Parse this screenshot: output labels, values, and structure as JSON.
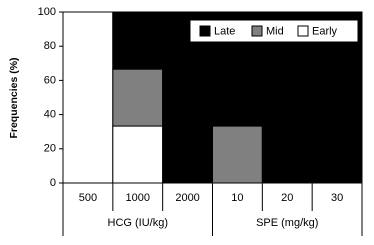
{
  "chart_data": {
    "type": "stacked_bar",
    "y_label": "Frequencies (%)",
    "categories": [
      "500",
      "1000",
      "2000",
      "10",
      "20",
      "30"
    ],
    "x_groups": [
      "HCG (IU/kg)",
      "SPE (mg/kg)"
    ],
    "series": [
      {
        "name": "Early",
        "color": "#ffffff",
        "values": [
          100,
          33.3,
          0,
          0,
          0,
          0
        ]
      },
      {
        "name": "Mid",
        "color": "#808080",
        "values": [
          0,
          33.3,
          0,
          33.3,
          0,
          0
        ]
      },
      {
        "name": "Late",
        "color": "#000000",
        "values": [
          0,
          33.4,
          100,
          66.7,
          100,
          100
        ]
      }
    ],
    "ylim": [
      0,
      100
    ],
    "yticks": [
      0,
      20,
      40,
      60,
      80,
      100
    ],
    "legend": "top-right"
  }
}
